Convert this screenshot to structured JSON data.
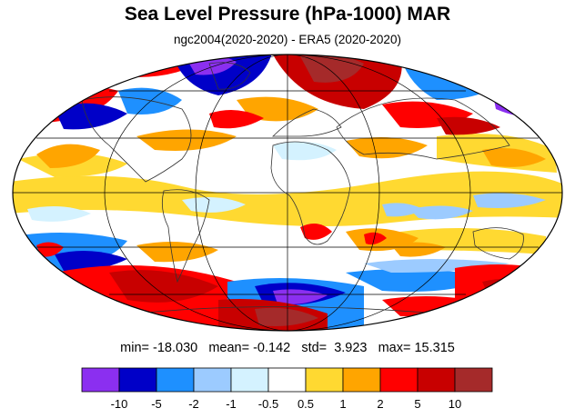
{
  "title": "Sea Level Pressure (hPa-1000) MAR",
  "subtitle": "ngc2004(2020-2020) - ERA5 (2020-2020)",
  "stats": {
    "min_label": "min=",
    "min_value": "-18.030",
    "mean_label": "mean=",
    "mean_value": "-0.142",
    "std_label": "std=",
    "std_value": "3.923",
    "max_label": "max=",
    "max_value": "15.315"
  },
  "colorbar": {
    "colors": [
      "#8b2ff0",
      "#0000c8",
      "#1e90ff",
      "#9ccbff",
      "#d4f2ff",
      "#ffffff",
      "#ffd931",
      "#ffa500",
      "#ff0000",
      "#c80000",
      "#a52a2a"
    ],
    "labels": [
      "-10",
      "-5",
      "-2",
      "-1",
      "-0.5",
      "0.5",
      "1",
      "2",
      "5",
      "10"
    ]
  },
  "map": {
    "projection": "mollweide",
    "background_value_color": "#ffffff",
    "anomaly_colors": {
      "strong_negative": "#8b2ff0",
      "very_negative": "#0000c8",
      "negative": "#1e90ff",
      "weak_negative": "#9ccbff",
      "slight_negative": "#d4f2ff",
      "slight_positive": "#ffd931",
      "positive": "#ffa500",
      "strong_positive": "#ff0000",
      "very_positive": "#c80000",
      "extreme_positive": "#a52a2a"
    }
  }
}
